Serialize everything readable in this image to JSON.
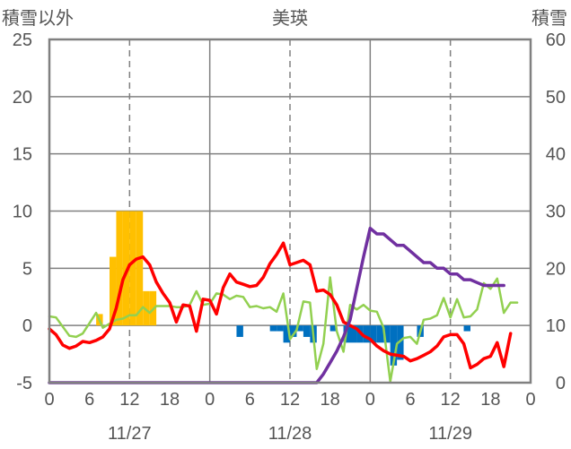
{
  "chart_data": {
    "type": "bar+line",
    "title": "美瑛",
    "left_axis_label": "積雪以外",
    "right_axis_label": "積雪",
    "left_ylim": [
      -5,
      25
    ],
    "left_ticks": [
      25,
      20,
      15,
      10,
      5,
      0,
      -5
    ],
    "right_ylim": [
      0,
      60
    ],
    "right_ticks": [
      60,
      50,
      40,
      30,
      20,
      10,
      0
    ],
    "x_tick_labels": [
      "0",
      "6",
      "12",
      "18",
      "0",
      "6",
      "12",
      "18",
      "0",
      "6",
      "12",
      "18",
      "0"
    ],
    "date_labels": [
      "11/27",
      "11/28",
      "11/29"
    ],
    "x_range_hours": [
      0,
      72
    ],
    "grid": {
      "day_lines_solid": true,
      "midday_lines_dashed": true,
      "horizontal": true
    },
    "colors": {
      "snowfall_positive": "#FFC000",
      "snowfall_negative": "#0070C0",
      "temperature": "#FF0000",
      "wind": "#92D050",
      "snow_depth": "#7030A0",
      "axis_text": "#555555",
      "grid": "#808080"
    },
    "series": [
      {
        "key": "snowfall",
        "axis": "left",
        "kind": "bar",
        "points": [
          [
            7.5,
            1
          ],
          [
            9.5,
            6
          ],
          [
            10.5,
            10
          ],
          [
            11.5,
            10
          ],
          [
            12.5,
            10
          ],
          [
            13.5,
            10
          ],
          [
            14.5,
            3
          ],
          [
            15.5,
            3
          ],
          [
            28.5,
            -1
          ],
          [
            33.5,
            -0.5
          ],
          [
            34.5,
            -0.5
          ],
          [
            35.5,
            -1.5
          ],
          [
            36.5,
            -1
          ],
          [
            37.5,
            -0.5
          ],
          [
            38.5,
            -1
          ],
          [
            39.5,
            -1.5
          ],
          [
            42.5,
            -0.5
          ],
          [
            44.5,
            -1.5
          ],
          [
            45.5,
            -1.5
          ],
          [
            46.5,
            -1.5
          ],
          [
            47.5,
            -1.5
          ],
          [
            48.5,
            -1.5
          ],
          [
            49.5,
            -1.5
          ],
          [
            50.5,
            -1.5
          ],
          [
            51.5,
            -3.5
          ],
          [
            52.5,
            -3
          ],
          [
            55.5,
            -1
          ],
          [
            62.5,
            -0.5
          ]
        ]
      },
      {
        "key": "temperature",
        "axis": "left",
        "kind": "line",
        "points": [
          [
            0,
            -0.3
          ],
          [
            1,
            -0.8
          ],
          [
            2,
            -1.7
          ],
          [
            3,
            -2
          ],
          [
            4,
            -1.8
          ],
          [
            5,
            -1.4
          ],
          [
            6,
            -1.5
          ],
          [
            7,
            -1.3
          ],
          [
            8,
            -1
          ],
          [
            9,
            -0.3
          ],
          [
            10,
            1.5
          ],
          [
            11,
            4
          ],
          [
            12,
            5.3
          ],
          [
            13,
            5.8
          ],
          [
            14,
            6
          ],
          [
            15,
            5.3
          ],
          [
            16,
            3.8
          ],
          [
            17,
            2.8
          ],
          [
            18,
            2
          ],
          [
            19,
            0.3
          ],
          [
            20,
            1.8
          ],
          [
            21,
            1.7
          ],
          [
            22,
            -0.5
          ],
          [
            23,
            2.3
          ],
          [
            24,
            2.2
          ],
          [
            25,
            1
          ],
          [
            26,
            3.3
          ],
          [
            27,
            4.5
          ],
          [
            28,
            3.8
          ],
          [
            29,
            3.6
          ],
          [
            30,
            3.4
          ],
          [
            31,
            3.5
          ],
          [
            32,
            4.2
          ],
          [
            33,
            5.4
          ],
          [
            34,
            6.2
          ],
          [
            35,
            7.2
          ],
          [
            36,
            5.3
          ],
          [
            37,
            5.5
          ],
          [
            38,
            5.7
          ],
          [
            39,
            5.3
          ],
          [
            40,
            3
          ],
          [
            41,
            3.1
          ],
          [
            42,
            2.7
          ],
          [
            43,
            1.8
          ],
          [
            44,
            0.3
          ],
          [
            45,
            0
          ],
          [
            46,
            -0.3
          ],
          [
            47,
            -0.9
          ],
          [
            48,
            -1.2
          ],
          [
            49,
            -1.8
          ],
          [
            50,
            -2.2
          ],
          [
            51,
            -2.5
          ],
          [
            52,
            -2.6
          ],
          [
            53,
            -2.7
          ],
          [
            54,
            -3.1
          ],
          [
            55,
            -2.9
          ],
          [
            56,
            -2.6
          ],
          [
            57,
            -2.3
          ],
          [
            58,
            -1.8
          ],
          [
            59,
            -1
          ],
          [
            60,
            -0.8
          ],
          [
            61,
            -0.8
          ],
          [
            62,
            -1.6
          ],
          [
            63,
            -3.7
          ],
          [
            64,
            -3.4
          ],
          [
            65,
            -2.9
          ],
          [
            66,
            -2.7
          ],
          [
            67,
            -1.5
          ],
          [
            68,
            -3.6
          ],
          [
            69,
            -0.7
          ]
        ]
      },
      {
        "key": "wind",
        "axis": "left",
        "kind": "line",
        "points": [
          [
            0,
            0.8
          ],
          [
            1,
            0.7
          ],
          [
            3,
            -0.9
          ],
          [
            4,
            -1
          ],
          [
            5,
            -0.7
          ],
          [
            7,
            1.1
          ],
          [
            8,
            -0.2
          ],
          [
            10,
            0.5
          ],
          [
            11,
            0.6
          ],
          [
            12,
            0.9
          ],
          [
            13,
            0.9
          ],
          [
            14,
            1.6
          ],
          [
            15,
            1.1
          ],
          [
            16,
            1.7
          ],
          [
            18,
            1.7
          ],
          [
            19,
            1.6
          ],
          [
            20,
            1.6
          ],
          [
            21,
            1.8
          ],
          [
            22,
            3
          ],
          [
            23,
            1.8
          ],
          [
            24,
            1.9
          ],
          [
            25,
            2.8
          ],
          [
            26,
            2.7
          ],
          [
            27,
            2.3
          ],
          [
            28,
            2.6
          ],
          [
            29,
            2.5
          ],
          [
            30,
            1.6
          ],
          [
            31,
            1.7
          ],
          [
            32,
            1.5
          ],
          [
            33,
            1.6
          ],
          [
            34,
            1.2
          ],
          [
            35,
            2.8
          ],
          [
            36,
            -1.2
          ],
          [
            37,
            -0.4
          ],
          [
            38,
            2.1
          ],
          [
            39,
            2
          ],
          [
            40,
            -3.8
          ],
          [
            41,
            -1.6
          ],
          [
            42,
            4.2
          ],
          [
            43,
            -0.5
          ],
          [
            44,
            -2.3
          ],
          [
            45,
            1.8
          ],
          [
            46,
            1.4
          ],
          [
            47,
            1.8
          ],
          [
            48,
            1.3
          ],
          [
            49,
            1.2
          ],
          [
            50,
            -0.2
          ],
          [
            51,
            -4.9
          ],
          [
            52,
            -1.6
          ],
          [
            53,
            -1.1
          ],
          [
            54,
            -1
          ],
          [
            55,
            -1.6
          ],
          [
            56,
            0.5
          ],
          [
            57,
            0.6
          ],
          [
            58,
            0.9
          ],
          [
            59,
            2.4
          ],
          [
            60,
            0.7
          ],
          [
            61,
            2.3
          ],
          [
            62,
            0.7
          ],
          [
            63,
            0.8
          ],
          [
            64,
            1.4
          ],
          [
            65,
            3.7
          ],
          [
            66,
            3.2
          ],
          [
            67,
            4.1
          ],
          [
            68,
            1.1
          ],
          [
            69,
            2
          ],
          [
            70,
            2
          ]
        ]
      },
      {
        "key": "snow_depth",
        "axis": "right",
        "kind": "line",
        "points": [
          [
            0,
            0
          ],
          [
            40,
            0
          ],
          [
            41,
            1.5
          ],
          [
            42,
            3.5
          ],
          [
            43,
            5.5
          ],
          [
            44,
            8
          ],
          [
            45,
            11
          ],
          [
            46,
            16.5
          ],
          [
            47,
            22
          ],
          [
            48,
            27
          ],
          [
            49,
            26
          ],
          [
            50,
            26
          ],
          [
            51,
            25
          ],
          [
            52,
            24
          ],
          [
            53,
            24
          ],
          [
            54,
            23
          ],
          [
            55,
            22
          ],
          [
            56,
            21
          ],
          [
            57,
            21
          ],
          [
            58,
            20
          ],
          [
            59,
            20
          ],
          [
            60,
            19
          ],
          [
            61,
            19
          ],
          [
            62,
            18
          ],
          [
            63,
            18
          ],
          [
            64,
            17.5
          ],
          [
            65,
            17
          ],
          [
            66,
            17
          ],
          [
            67,
            17
          ],
          [
            68,
            17
          ]
        ]
      }
    ]
  }
}
